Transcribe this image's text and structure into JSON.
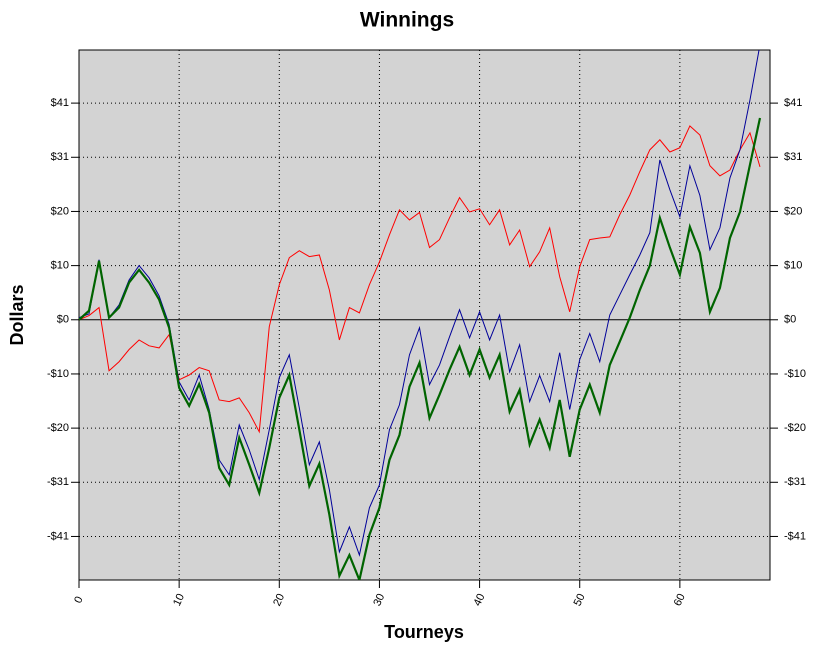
{
  "chart_data": {
    "type": "line",
    "title": "Winnings",
    "x_label": "Tourneys",
    "y_label": "Dollars",
    "x": [
      0,
      1,
      2,
      3,
      4,
      5,
      6,
      7,
      8,
      9,
      10,
      11,
      12,
      13,
      14,
      15,
      16,
      17,
      18,
      19,
      20,
      21,
      22,
      23,
      24,
      25,
      26,
      27,
      28,
      29,
      30,
      31,
      32,
      33,
      34,
      35,
      36,
      37,
      38,
      39,
      40,
      41,
      42,
      43,
      44,
      45,
      46,
      47,
      48,
      49,
      50,
      51,
      52,
      53,
      54,
      55,
      56,
      57,
      58,
      59,
      60,
      61,
      62,
      63,
      64,
      65,
      66,
      67,
      68
    ],
    "series": [
      {
        "color": "#ff0000",
        "width": 1,
        "values": [
          0,
          0.8,
          2.3,
          -9.6,
          -7.9,
          -5.6,
          -3.8,
          -4.9,
          -5.3,
          -2.8,
          -11.3,
          -10.4,
          -9,
          -9.6,
          -15.1,
          -15.4,
          -14.7,
          -17.5,
          -21.1,
          -1.3,
          6.6,
          11.7,
          13,
          11.9,
          12.2,
          5.6,
          -3.8,
          2.3,
          1.3,
          6.6,
          10.9,
          16,
          20.7,
          18.8,
          20.2,
          13.6,
          15.1,
          19.2,
          23,
          20.3,
          20.9,
          17.9,
          20.7,
          14.1,
          16.9,
          10,
          12.8,
          17.3,
          8.1,
          1.5,
          10,
          15.1,
          15.4,
          15.6,
          19.8,
          23.5,
          27.9,
          32,
          33.9,
          31.6,
          32.4,
          36.5,
          34.8,
          29,
          27.1,
          28.2,
          32,
          35.2,
          28.8
        ]
      },
      {
        "color": "#000099",
        "width": 1,
        "values": [
          0.4,
          1.1,
          11.3,
          0.4,
          2.8,
          7.5,
          10.2,
          7.9,
          4.5,
          -0.9,
          -11.7,
          -15.1,
          -10.4,
          -16.9,
          -26.4,
          -29.2,
          -19.8,
          -24.5,
          -30.1,
          -20.7,
          -10.9,
          -6.6,
          -16.6,
          -27.3,
          -23,
          -32,
          -43.7,
          -39,
          -44.3,
          -35.4,
          -31.1,
          -20.7,
          -16,
          -6.6,
          -1.5,
          -12.2,
          -8.5,
          -3.2,
          1.9,
          -3.4,
          1.5,
          -3.8,
          0.9,
          -9.8,
          -4.7,
          -15.4,
          -10.5,
          -15.4,
          -6.2,
          -16.9,
          -7.5,
          -2.6,
          -7.9,
          0.9,
          4.7,
          8.5,
          12.2,
          16.4,
          30.1,
          24.5,
          19.4,
          29,
          23.4,
          13.2,
          17.3,
          26.7,
          32,
          41.4,
          51.8
        ]
      },
      {
        "color": "#006400",
        "width": 2.2,
        "values": [
          0,
          1.7,
          11.1,
          0.4,
          2.3,
          7,
          9.4,
          7,
          3.8,
          -1.5,
          -12.8,
          -16.2,
          -12.1,
          -17.5,
          -27.9,
          -31.1,
          -22.2,
          -27.3,
          -32.6,
          -24.1,
          -14.7,
          -10.4,
          -20.7,
          -31.3,
          -27.1,
          -36.7,
          -48.2,
          -44.3,
          -49,
          -40.5,
          -35.4,
          -26.4,
          -21.7,
          -12.6,
          -8.1,
          -18.5,
          -14.1,
          -9.4,
          -5.1,
          -10.4,
          -5.6,
          -10.9,
          -6.6,
          -17.3,
          -13.2,
          -23.5,
          -18.8,
          -24.1,
          -15.1,
          -25.8,
          -16.9,
          -12.2,
          -17.5,
          -8.5,
          -4.1,
          0.4,
          5.6,
          10.2,
          19.2,
          13.6,
          8.5,
          17.5,
          12.6,
          1.5,
          6,
          15.4,
          20.3,
          29.2,
          38
        ]
      }
    ],
    "xlim": [
      0,
      69
    ],
    "xticks": [
      0,
      10,
      20,
      30,
      40,
      50,
      60
    ],
    "ylim": [
      -49,
      50.8
    ],
    "yticks": [
      {
        "value": -40.8,
        "label": "-$41"
      },
      {
        "value": -30.6,
        "label": "-$31"
      },
      {
        "value": -20.4,
        "label": "-$20"
      },
      {
        "value": -10.2,
        "label": "-$10"
      },
      {
        "value": 0,
        "label": "$0"
      },
      {
        "value": 10.2,
        "label": "$10"
      },
      {
        "value": 20.4,
        "label": "$20"
      },
      {
        "value": 30.6,
        "label": "$31"
      },
      {
        "value": 40.8,
        "label": "$41"
      }
    ],
    "grid": true,
    "plot_background": "#d3d3d3"
  }
}
